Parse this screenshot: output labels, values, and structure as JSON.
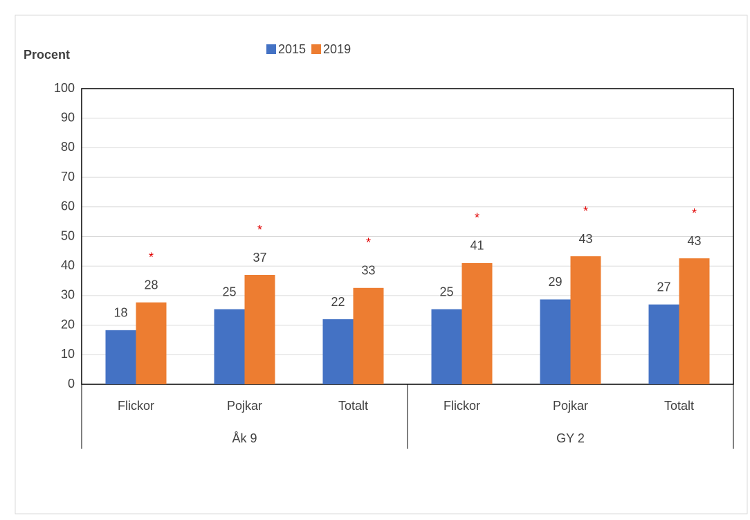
{
  "chart_data": {
    "type": "bar",
    "y_label": "Procent",
    "categories": [
      "Flickor",
      "Pojkar",
      "Totalt",
      "Flickor",
      "Pojkar",
      "Totalt"
    ],
    "groups": [
      "Åk 9",
      "GY 2"
    ],
    "series": [
      {
        "name": "2015",
        "color": "#4472c4",
        "values": [
          18.3,
          25.4,
          22.0,
          25.4,
          28.7,
          27.0
        ],
        "value_labels": [
          "18",
          "25",
          "22",
          "25",
          "29",
          "27"
        ]
      },
      {
        "name": "2019",
        "color": "#ed7d31",
        "values": [
          27.7,
          37.0,
          32.6,
          41.0,
          43.3,
          42.6
        ],
        "value_labels": [
          "28",
          "37",
          "33",
          "41",
          "43",
          "43"
        ]
      }
    ],
    "annotations": [
      "*",
      "*",
      "*",
      "*",
      "*",
      "*"
    ],
    "annotation_color": "#e00000",
    "ylim": [
      0,
      100
    ],
    "yticks": [
      0,
      10,
      20,
      30,
      40,
      50,
      60,
      70,
      80,
      90,
      100
    ],
    "grid": true
  }
}
